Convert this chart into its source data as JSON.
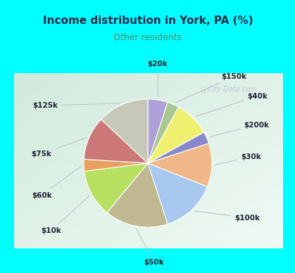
{
  "title": "Income distribution in York, PA (%)",
  "subtitle": "Other residents",
  "title_color": "#2a2a4a",
  "subtitle_color": "#4a8a6a",
  "background_outer": "#00ffff",
  "background_inner_tl": "#d8ede0",
  "background_inner_br": "#e8f5ee",
  "watermark": "City-Data.com",
  "labels": [
    "$20k",
    "$150k",
    "$40k",
    "$200k",
    "$30k",
    "$100k",
    "$50k",
    "$10k",
    "$60k",
    "$75k",
    "$125k"
  ],
  "values": [
    5,
    3,
    9,
    3,
    11,
    14,
    16,
    12,
    3,
    11,
    13
  ],
  "colors": [
    "#b0a0d8",
    "#a8c890",
    "#f0f070",
    "#8888cc",
    "#f0b888",
    "#a8c8f0",
    "#c0b890",
    "#b8e060",
    "#e8a060",
    "#cc7878",
    "#c8c8b8"
  ],
  "startangle": 90
}
